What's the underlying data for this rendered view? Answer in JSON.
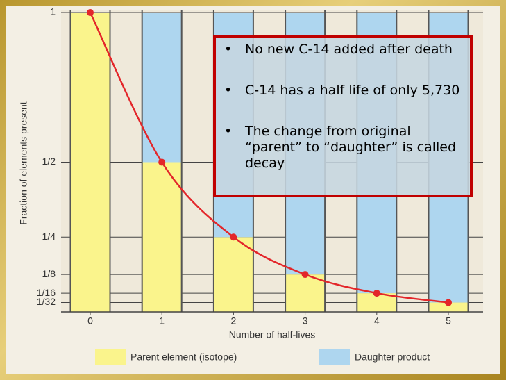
{
  "chart_data": {
    "type": "stacked-bar",
    "y_label": "Fraction of elements present",
    "x_label": "Number of half-lives",
    "categories": [
      "0",
      "1",
      "2",
      "3",
      "4",
      "5"
    ],
    "series": [
      {
        "name": "Parent element (isotope)",
        "color": "#faf48c",
        "values": [
          1,
          0.5,
          0.25,
          0.125,
          0.0625,
          0.03125
        ]
      },
      {
        "name": "Daughter product",
        "color": "#aed6ef",
        "values": [
          0,
          0.5,
          0.75,
          0.875,
          0.9375,
          0.96875
        ]
      }
    ],
    "curve_color": "#e3262a",
    "ylim": [
      0,
      1
    ],
    "yticks": [
      {
        "value": 0.03125,
        "label": "1/32"
      },
      {
        "value": 0.0625,
        "label": "1/16"
      },
      {
        "value": 0.125,
        "label": "1/8"
      },
      {
        "value": 0.25,
        "label": "1/4"
      },
      {
        "value": 0.5,
        "label": "1/2"
      },
      1
    ],
    "grid": true,
    "annotations": [
      "No new C-14 added after death",
      "C-14 has a half life of only 5,730",
      "The change from original “parent” to “daughter” is called decay"
    ]
  }
}
